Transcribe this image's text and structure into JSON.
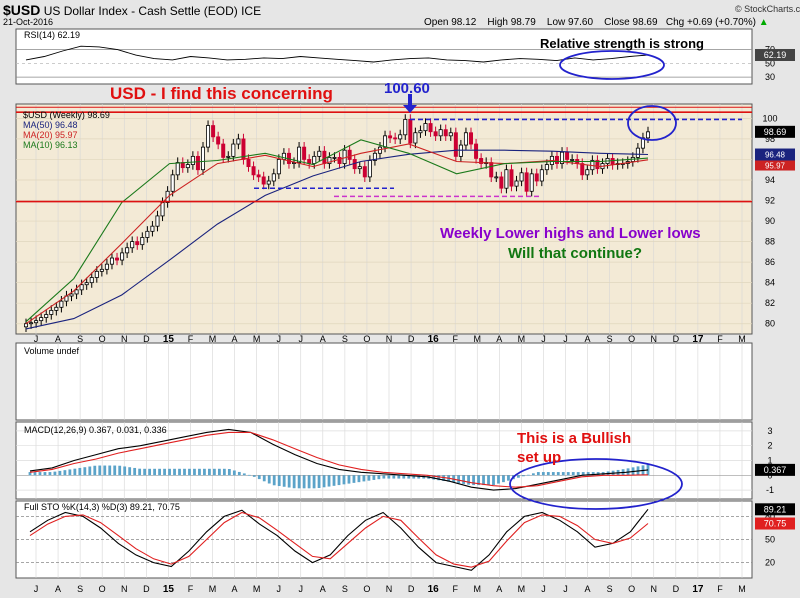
{
  "header": {
    "symbol": "$USD",
    "name": "US Dollar Index - Cash Settle (EOD) ICE",
    "date": "21-Oct-2016",
    "open": "Open 98.12",
    "high": "High 98.79",
    "low": "Low 97.60",
    "close": "Close 98.69",
    "change": "Chg +0.69 (+0.70%)",
    "brand": "© StockCharts.com",
    "arrow_icon": "up-triangle-icon"
  },
  "annotations": {
    "rsi_note": "Relative strength is strong",
    "concern": "USD - I find this concerning",
    "peak": "100.60",
    "lower_highs": "Weekly Lower highs and Lower lows",
    "continue": "Will that continue?",
    "bullish_1": "This is a Bullish",
    "bullish_2": "set up"
  },
  "colors": {
    "candle_up": "#000000",
    "candle_down": "#cc0033",
    "ma50": "#1a237e",
    "ma20": "#cc2222",
    "ma10": "#1b7a1b",
    "resistance": "#dd1111",
    "highlight": "#2222cc",
    "volume_bar": "#5ba3c9",
    "signal_line": "#e02020",
    "green_text": "#117711",
    "purple_text": "#8800cc",
    "price_panel_bg": "#f3ead6"
  },
  "chart_data": [
    {
      "type": "candlestick",
      "panel": "price",
      "title": "$USD (Weekly) 98.69",
      "x_ticks": [
        "J",
        "A",
        "S",
        "O",
        "N",
        "D",
        "15",
        "F",
        "M",
        "A",
        "M",
        "J",
        "J",
        "A",
        "S",
        "O",
        "N",
        "D",
        "16",
        "F",
        "M",
        "A",
        "M",
        "J",
        "J",
        "A",
        "S",
        "O",
        "N",
        "D",
        "17",
        "F",
        "M"
      ],
      "ylim": [
        79,
        101.4
      ],
      "y_ticks": [
        80,
        82,
        84,
        86,
        88,
        90,
        92,
        94,
        96,
        98,
        100
      ],
      "price_closes": [
        80.0,
        80.1,
        80.3,
        80.6,
        80.9,
        81.3,
        81.6,
        82.2,
        82.7,
        82.9,
        83.3,
        83.8,
        84.0,
        84.5,
        85.1,
        85.3,
        85.8,
        86.4,
        86.2,
        86.9,
        87.4,
        88.0,
        87.7,
        88.4,
        89.0,
        89.5,
        90.5,
        91.8,
        92.9,
        94.5,
        95.7,
        95.2,
        95.5,
        96.3,
        95.0,
        97.2,
        99.3,
        98.2,
        97.5,
        96.2,
        96.3,
        97.5,
        98.0,
        96.0,
        95.3,
        94.5,
        94.3,
        93.6,
        93.9,
        94.6,
        96.0,
        96.6,
        95.6,
        95.7,
        97.2,
        96.0,
        95.6,
        96.3,
        96.8,
        95.6,
        96.2,
        96.2,
        95.6,
        96.9,
        96.0,
        95.1,
        95.3,
        94.3,
        95.9,
        96.6,
        97.2,
        98.3,
        98.1,
        98.0,
        98.4,
        99.9,
        97.6,
        98.6,
        98.8,
        99.5,
        98.7,
        98.3,
        98.9,
        98.3,
        98.6,
        96.3,
        97.4,
        98.6,
        97.5,
        96.1,
        95.6,
        95.7,
        94.3,
        94.3,
        93.2,
        95.0,
        93.4,
        93.9,
        94.7,
        92.9,
        94.6,
        93.9,
        95.0,
        95.5,
        96.3,
        95.6,
        96.7,
        96.0,
        96.0,
        95.6,
        94.5,
        95.0,
        95.9,
        95.1,
        95.6,
        96.1,
        95.5,
        95.6,
        95.6,
        95.8,
        96.2,
        97.1,
        98.1,
        98.69
      ],
      "levels": {
        "resistance": 100.6,
        "support": 91.9
      },
      "annotations": [
        "100.60"
      ],
      "series": [
        {
          "name": "MA(50) 96.48",
          "color": "#1a237e",
          "values": [
            79.5,
            80.5,
            82.8,
            86.2,
            89.7,
            92.5,
            94.4,
            95.8,
            96.5,
            96.9,
            96.9,
            96.8,
            96.6,
            96.48
          ]
        },
        {
          "name": "MA(20) 95.97",
          "color": "#cc2222",
          "values": [
            80.0,
            83.2,
            87.8,
            92.5,
            95.6,
            96.4,
            95.3,
            96.6,
            97.5,
            95.8,
            95.6,
            95.9,
            95.3,
            95.97
          ]
        },
        {
          "name": "MA(10) 96.13",
          "color": "#1b7a1b",
          "values": [
            80.2,
            84.4,
            91.8,
            95.6,
            95.9,
            96.6,
            95.5,
            97.9,
            96.6,
            94.6,
            95.6,
            95.8,
            95.8,
            96.13
          ]
        }
      ]
    },
    {
      "type": "line",
      "panel": "rsi",
      "title": "RSI(14) 62.19",
      "y_ticks": [
        70,
        50,
        30
      ],
      "series": [
        {
          "name": "RSI(14) 62.19",
          "values": [
            55,
            60,
            68,
            75,
            74,
            70,
            62,
            57,
            55,
            60,
            58,
            55,
            56,
            58,
            57,
            60,
            58,
            56,
            54,
            52,
            55,
            57,
            58,
            55,
            54,
            52,
            55,
            57,
            56,
            54,
            58,
            55,
            57,
            60,
            62.19
          ]
        }
      ],
      "annotations": [
        "Relative strength is strong"
      ]
    },
    {
      "type": "bar",
      "panel": "volume",
      "title": "Volume undef",
      "series": []
    },
    {
      "type": "line",
      "panel": "macd",
      "title": "MACD(12,26,9) 0.367, 0.031, 0.336",
      "y_ticks": [
        3,
        2,
        1,
        0,
        -1
      ],
      "series": [
        {
          "name": "MACD 0.367",
          "color": "#000000",
          "values": [
            0.3,
            0.5,
            1.0,
            1.4,
            1.8,
            2.0,
            2.3,
            2.6,
            2.9,
            3.1,
            2.9,
            2.1,
            1.4,
            0.8,
            0.4,
            0.2,
            0.1,
            0.0,
            -0.1,
            -0.4,
            -0.8,
            -1.0,
            -0.9,
            -0.6,
            -0.3,
            0.0,
            0.1,
            0.2,
            0.367
          ]
        },
        {
          "name": "Signal 0.031",
          "color": "#e02020",
          "values": [
            0.2,
            0.4,
            0.8,
            1.1,
            1.5,
            1.8,
            2.1,
            2.4,
            2.7,
            2.9,
            2.9,
            2.4,
            1.8,
            1.2,
            0.7,
            0.4,
            0.2,
            0.1,
            0.0,
            -0.2,
            -0.5,
            -0.7,
            -0.8,
            -0.7,
            -0.4,
            -0.1,
            0.0,
            0.0,
            0.031
          ]
        },
        {
          "name": "Histogram 0.336",
          "color": "#5ba3c9",
          "values": [
            0.1,
            0.1,
            0.2,
            0.3,
            0.3,
            0.2,
            0.2,
            0.2,
            0.2,
            0.2,
            0.0,
            -0.3,
            -0.4,
            -0.4,
            -0.3,
            -0.2,
            -0.1,
            -0.1,
            -0.1,
            -0.2,
            -0.3,
            -0.3,
            -0.1,
            0.1,
            0.1,
            0.1,
            0.1,
            0.2,
            0.336
          ]
        }
      ],
      "annotations": [
        "This is a Bullish",
        "set up"
      ]
    },
    {
      "type": "line",
      "panel": "stochastic",
      "title": "Full STO %K(14,3) %D(3) 89.21, 70.75",
      "y_ticks": [
        80,
        50,
        20
      ],
      "series": [
        {
          "name": "%K 89.21",
          "color": "#000000",
          "values": [
            60,
            75,
            85,
            80,
            65,
            45,
            30,
            20,
            15,
            35,
            60,
            80,
            88,
            70,
            55,
            35,
            20,
            30,
            55,
            75,
            85,
            65,
            40,
            20,
            15,
            10,
            30,
            60,
            80,
            85,
            75,
            60,
            40,
            45,
            60,
            89.21
          ]
        },
        {
          "name": "%D 70.75",
          "color": "#e02020",
          "values": [
            55,
            70,
            80,
            82,
            72,
            55,
            38,
            25,
            18,
            28,
            50,
            72,
            85,
            78,
            62,
            45,
            28,
            25,
            45,
            65,
            80,
            75,
            52,
            30,
            18,
            14,
            22,
            48,
            72,
            82,
            80,
            68,
            50,
            45,
            52,
            70.75
          ]
        }
      ]
    }
  ]
}
